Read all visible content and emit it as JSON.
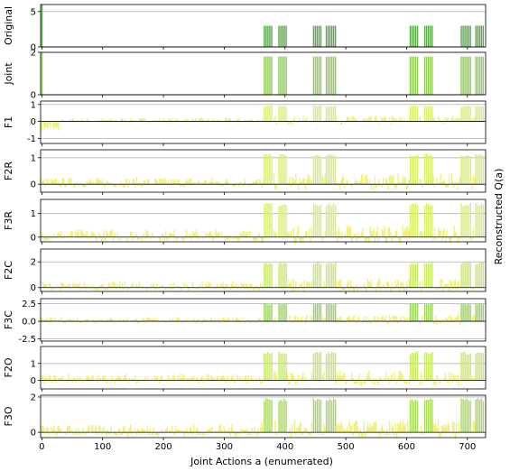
{
  "figure": {
    "xlabel": "Joint Actions a (enumerated)",
    "right_label": "Reconstructed Q(a)"
  },
  "chart_data": [
    {
      "type": "bar",
      "title": "Original",
      "ylim": [
        0,
        6
      ],
      "yticks": [
        0,
        5
      ],
      "grid_y": [
        5
      ],
      "xlim": [
        -2,
        730
      ],
      "xticks": [
        0,
        100,
        200,
        300,
        400,
        500,
        600,
        700
      ],
      "baseline": 0,
      "peak": 3,
      "colors": [
        "#7cc96a",
        "#5aa84a"
      ]
    },
    {
      "type": "bar",
      "title": "Joint",
      "ylim": [
        0,
        2
      ],
      "yticks": [
        0,
        2
      ],
      "grid_y": [
        2
      ],
      "xlim": [
        -2,
        730
      ],
      "baseline": 0,
      "peak": 1.8,
      "colors": [
        "#b4de6a",
        "#8fcb55"
      ]
    },
    {
      "type": "bar",
      "title": "F1",
      "ylim": [
        -1.3,
        1.2
      ],
      "yticks": [
        -1,
        0,
        1
      ],
      "grid_y": [
        -1,
        1
      ],
      "xlim": [
        -2,
        730
      ],
      "baseline": 0.0,
      "peak": 0.95,
      "colors": [
        "#f0f07a",
        "#d9ee6e"
      ]
    },
    {
      "type": "bar",
      "title": "F2R",
      "ylim": [
        -0.3,
        1.3
      ],
      "yticks": [
        0,
        1
      ],
      "grid_y": [
        1
      ],
      "xlim": [
        -2,
        730
      ],
      "baseline": 0.0,
      "peak": 1.15,
      "colors": [
        "#f0f07a",
        "#d9ee6e"
      ]
    },
    {
      "type": "bar",
      "title": "F3R",
      "ylim": [
        -0.2,
        1.6
      ],
      "yticks": [
        0,
        1
      ],
      "grid_y": [
        1
      ],
      "xlim": [
        -2,
        730
      ],
      "baseline": 0.0,
      "peak": 1.45,
      "colors": [
        "#f0f07a",
        "#d9ee6e"
      ]
    },
    {
      "type": "bar",
      "title": "F2C",
      "ylim": [
        -0.3,
        3.0
      ],
      "yticks": [
        0,
        2
      ],
      "grid_y": [
        2
      ],
      "xlim": [
        -2,
        730
      ],
      "baseline": 0.0,
      "peak": 2.0,
      "colors": [
        "#f0f07a",
        "#c9e86a"
      ]
    },
    {
      "type": "bar",
      "title": "F3C",
      "ylim": [
        -2.8,
        3.2
      ],
      "yticks": [
        -2.5,
        0.0,
        2.5
      ],
      "grid_y": [
        -2.5,
        2.5
      ],
      "xlim": [
        -2,
        730
      ],
      "baseline": 0.0,
      "peak": 2.6,
      "colors": [
        "#f0f07a",
        "#9bd35e"
      ]
    },
    {
      "type": "bar",
      "title": "F2O",
      "ylim": [
        -0.5,
        2.0
      ],
      "yticks": [
        0,
        1
      ],
      "grid_y": [
        1
      ],
      "xlim": [
        -2,
        730
      ],
      "baseline": 0.0,
      "peak": 1.7,
      "colors": [
        "#f0f07a",
        "#c9e86a"
      ]
    },
    {
      "type": "bar",
      "title": "F3O",
      "ylim": [
        -0.3,
        2.1
      ],
      "yticks": [
        0,
        2
      ],
      "grid_y": [
        2
      ],
      "xlim": [
        -2,
        730
      ],
      "baseline": 0.0,
      "peak": 1.95,
      "colors": [
        "#f0f07a",
        "#a9d860"
      ]
    }
  ]
}
